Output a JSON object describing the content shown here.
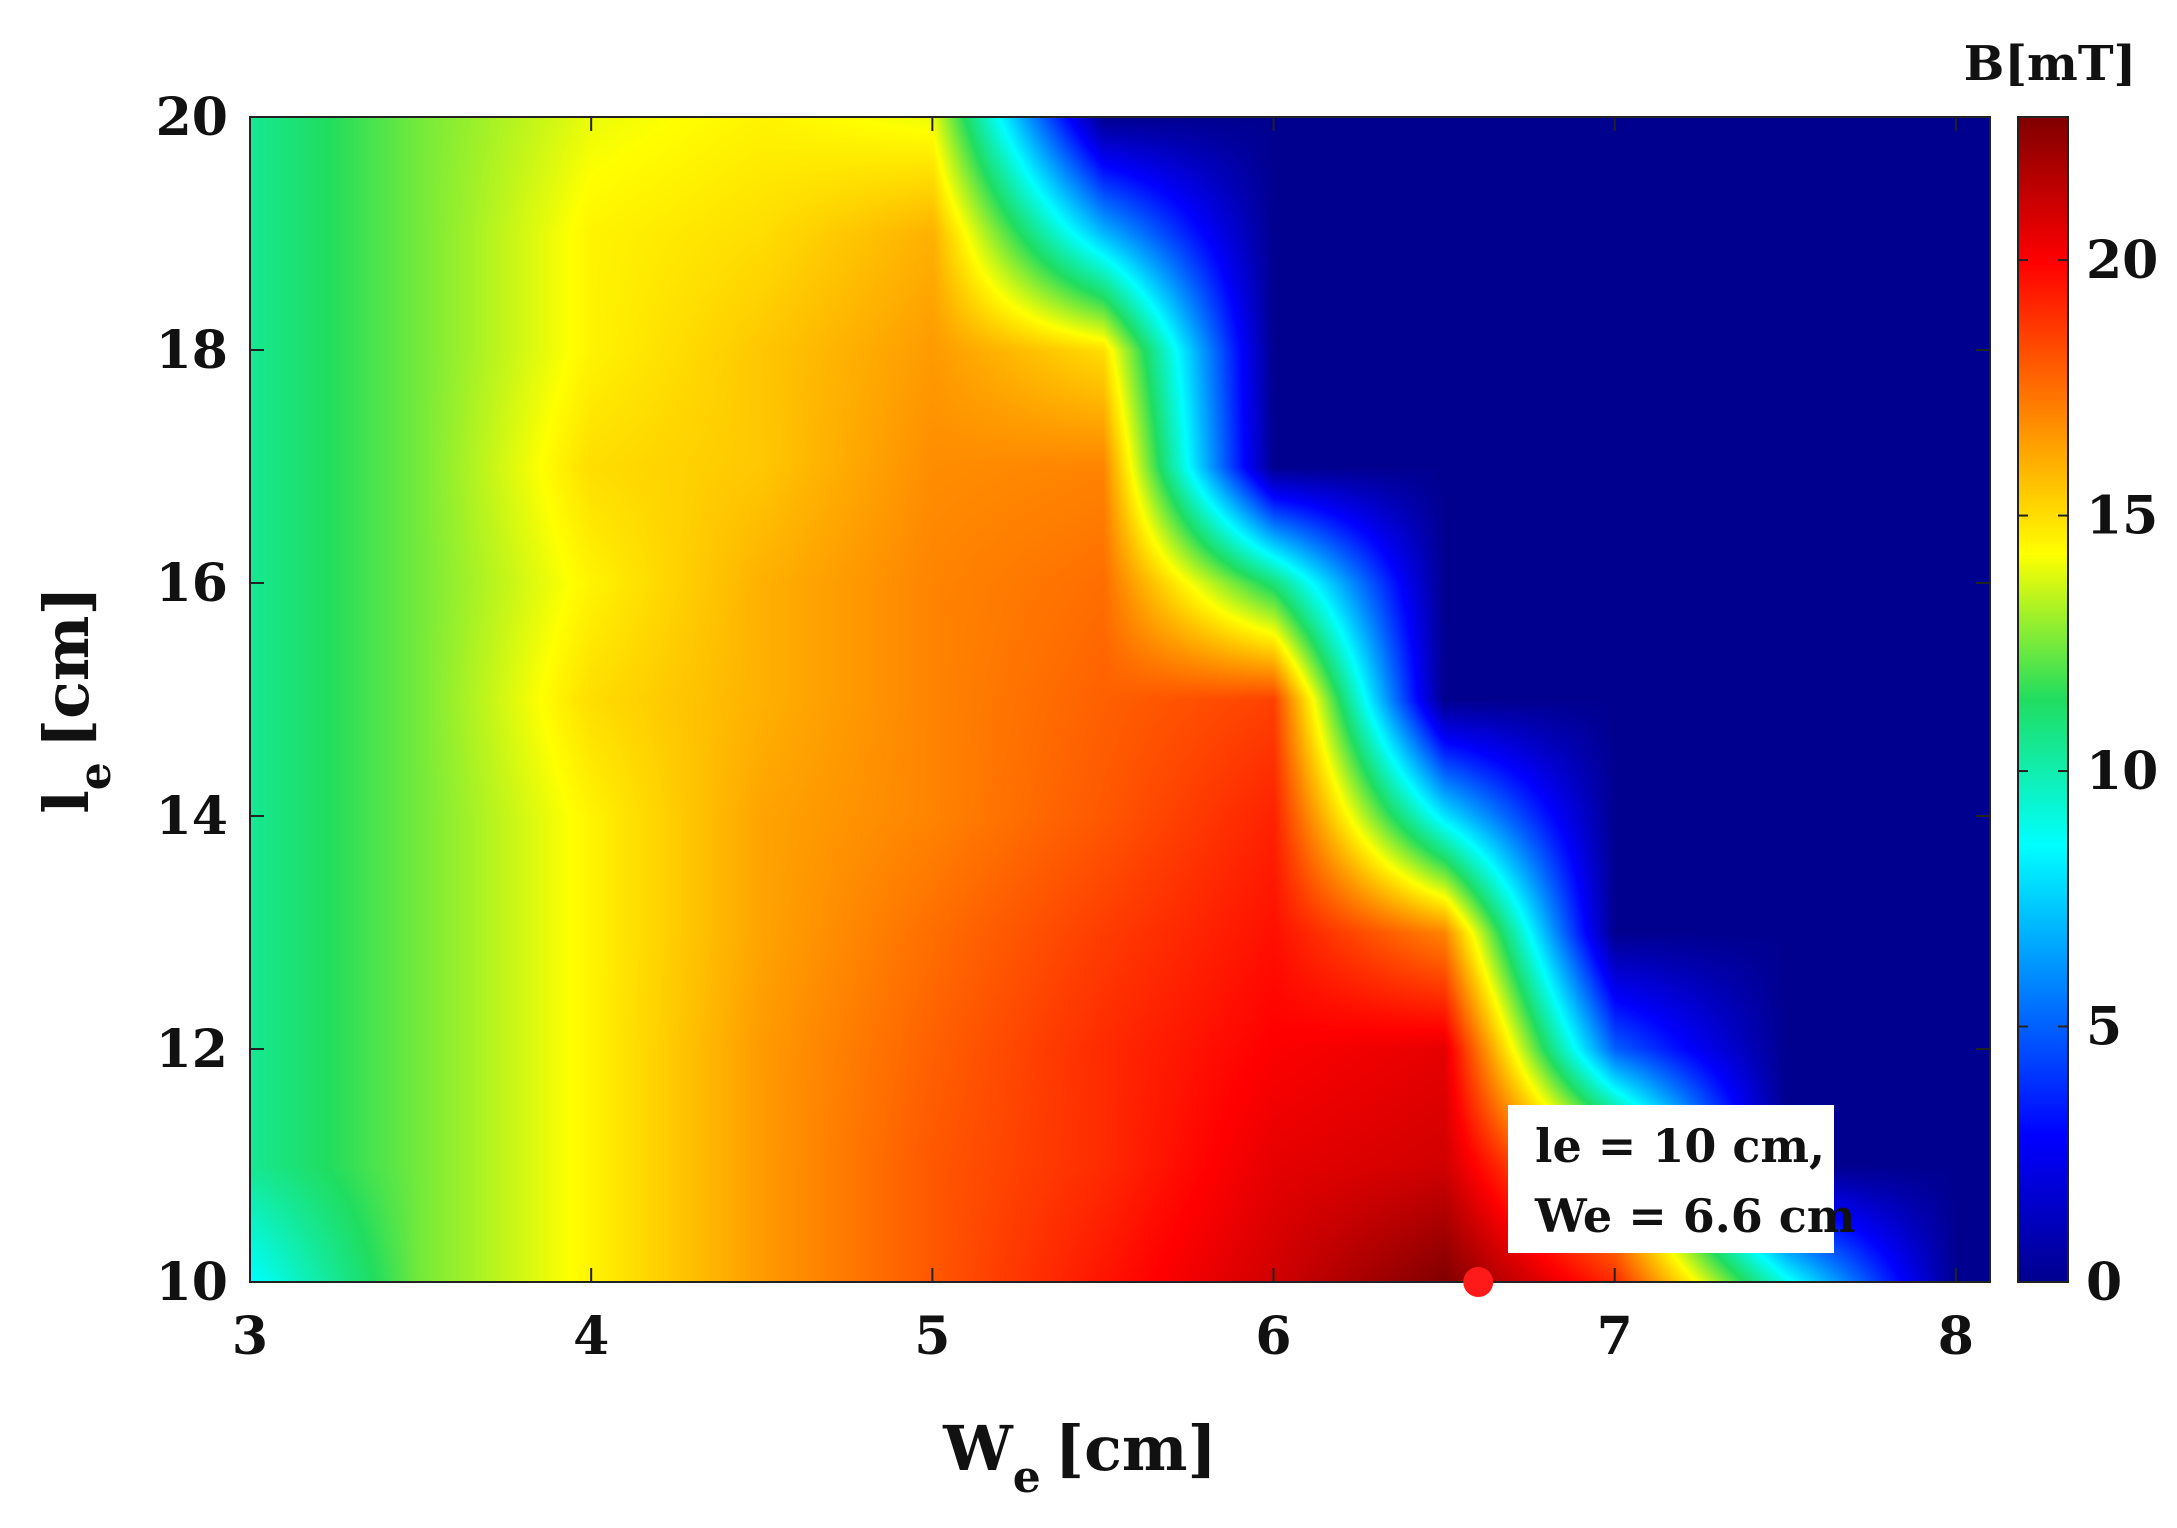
{
  "chart_data": {
    "type": "heatmap",
    "title": "",
    "xlabel_main": "W",
    "xlabel_sub": "e",
    "xlabel_unit": "[cm]",
    "ylabel_main": "l",
    "ylabel_sub": "e",
    "ylabel_unit": "[cm]",
    "xlim": [
      3,
      8.1
    ],
    "ylim": [
      10,
      20
    ],
    "xticks": [
      3,
      4,
      5,
      6,
      7,
      8
    ],
    "yticks": [
      10,
      12,
      14,
      16,
      18,
      20
    ],
    "colorbar": {
      "label": "B[mT]",
      "range": [
        0,
        22.8
      ],
      "ticks": [
        0,
        5,
        10,
        15,
        20
      ],
      "colormap": "jet"
    },
    "x": [
      3.0,
      3.5,
      4.0,
      4.5,
      5.0,
      5.5,
      6.0,
      6.5,
      7.0,
      7.5,
      8.0
    ],
    "y": [
      10,
      11,
      12,
      13,
      14,
      15,
      16,
      17,
      18,
      19,
      20
    ],
    "z": [
      [
        8.5,
        12.5,
        14.5,
        16.5,
        18.0,
        19.5,
        21.0,
        22.8,
        19.0,
        9.0,
        0.0
      ],
      [
        10.5,
        12.5,
        14.5,
        16.5,
        18.0,
        19.0,
        20.5,
        21.0,
        15.0,
        0.0,
        0.0
      ],
      [
        10.5,
        12.5,
        14.5,
        16.5,
        17.8,
        19.0,
        20.0,
        20.5,
        5.0,
        0.0,
        0.0
      ],
      [
        10.5,
        12.5,
        14.5,
        16.3,
        17.5,
        18.6,
        19.6,
        17.0,
        0.0,
        0.0,
        0.0
      ],
      [
        10.5,
        12.5,
        14.5,
        16.3,
        17.0,
        18.0,
        19.2,
        8.0,
        0.0,
        0.0,
        0.0
      ],
      [
        10.5,
        12.5,
        15.0,
        16.0,
        17.0,
        17.8,
        18.5,
        0.0,
        0.0,
        0.0,
        0.0
      ],
      [
        10.5,
        12.5,
        14.5,
        16.0,
        17.0,
        17.5,
        11.0,
        0.0,
        0.0,
        0.0,
        0.0
      ],
      [
        10.5,
        12.5,
        15.0,
        15.5,
        16.8,
        17.0,
        0.0,
        0.0,
        0.0,
        0.0,
        0.0
      ],
      [
        10.5,
        12.5,
        14.5,
        15.5,
        16.5,
        15.0,
        0.0,
        0.0,
        0.0,
        0.0,
        0.0
      ],
      [
        10.5,
        12.5,
        14.5,
        15.0,
        16.0,
        7.0,
        0.0,
        0.0,
        0.0,
        0.0,
        0.0
      ],
      [
        10.5,
        12.5,
        14.0,
        14.5,
        14.0,
        0.0,
        0.0,
        0.0,
        0.0,
        0.0,
        0.0
      ]
    ],
    "marker": {
      "x": 6.6,
      "y": 10,
      "color": "#ff1a1a"
    },
    "annotation": {
      "line1": "le   = 10 cm,",
      "line2": "We = 6.6 cm"
    },
    "grid": false
  }
}
